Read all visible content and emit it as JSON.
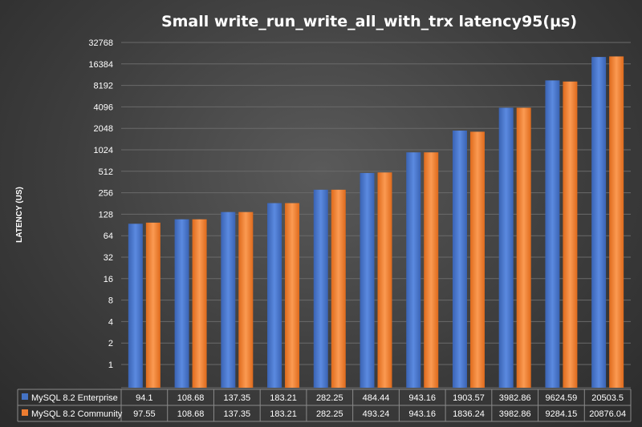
{
  "chart_data": {
    "type": "bar",
    "title": "Small  write_run_write_all_with_trx   latency95(µs)",
    "ylabel": "LATENCY (US)",
    "yscale": "log2",
    "ylim": [
      1,
      32768
    ],
    "yticks": [
      "1",
      "2",
      "4",
      "8",
      "16",
      "32",
      "64",
      "128",
      "256",
      "512",
      "1024",
      "2048",
      "4096",
      "8192",
      "16384",
      "32768"
    ],
    "grid": true,
    "legend": "data-table-below",
    "categories": [
      "",
      "",
      "",
      "",
      "",
      "",
      "",
      "",
      "",
      "",
      ""
    ],
    "series": [
      {
        "name": "MySQL 8.2 Enterprise",
        "color": "#4472c4",
        "values": [
          94.1,
          108.68,
          137.35,
          183.21,
          282.25,
          484.44,
          943.16,
          1903.57,
          3982.86,
          9624.59,
          20503.5
        ],
        "labels": [
          "94.1",
          "108.68",
          "137.35",
          "183.21",
          "282.25",
          "484.44",
          "943.16",
          "1903.57",
          "3982.86",
          "9624.59",
          "20503.5"
        ]
      },
      {
        "name": "MySQL 8.2 Community",
        "color": "#ed7d31",
        "values": [
          97.55,
          108.68,
          137.35,
          183.21,
          282.25,
          493.24,
          943.16,
          1836.24,
          3982.86,
          9284.15,
          20876.04
        ],
        "labels": [
          "97.55",
          "108.68",
          "137.35",
          "183.21",
          "282.25",
          "493.24",
          "943.16",
          "1836.24",
          "3982.86",
          "9284.15",
          "20876.04"
        ]
      }
    ]
  }
}
